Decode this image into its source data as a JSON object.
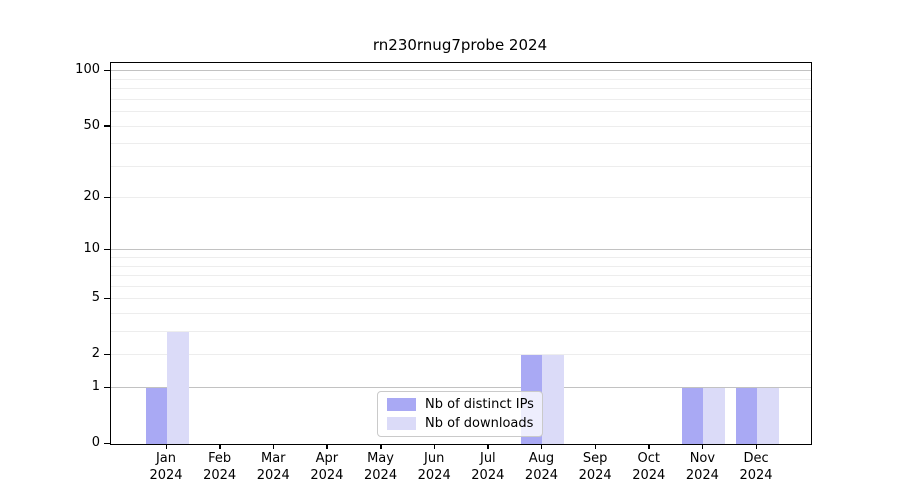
{
  "title": "rn230rnug7probe 2024",
  "chart_data": {
    "type": "bar",
    "title": "rn230rnug7probe 2024",
    "yscale": "log1p",
    "year": "2024",
    "months": [
      "Jan",
      "Feb",
      "Mar",
      "Apr",
      "May",
      "Jun",
      "Jul",
      "Aug",
      "Sep",
      "Oct",
      "Nov",
      "Dec"
    ],
    "series": [
      {
        "name": "Nb of distinct IPs",
        "color": "#a9a9f4",
        "values": [
          1,
          0,
          0,
          0,
          0,
          0,
          0,
          2,
          0,
          0,
          1,
          1
        ]
      },
      {
        "name": "Nb of downloads",
        "color": "#dbdbf8",
        "values": [
          3,
          0,
          0,
          0,
          0,
          0,
          0,
          2,
          0,
          0,
          1,
          1
        ]
      }
    ],
    "y_ticks": [
      0,
      1,
      2,
      5,
      10,
      20,
      50,
      100
    ],
    "y_major_grid": [
      1,
      10,
      100
    ],
    "y_minor_grid": [
      2,
      3,
      4,
      5,
      6,
      7,
      8,
      9,
      20,
      30,
      40,
      50,
      60,
      70,
      80,
      90
    ],
    "y_top": 111,
    "ylim": [
      0,
      111
    ],
    "xlabel": "",
    "ylabel": "",
    "legend_position": "lower center",
    "grid": "on"
  },
  "colors": {
    "bar_distinct_ips": "#a9a9f4",
    "bar_downloads": "#dbdbf8",
    "major_grid": "#c2c2c2",
    "minor_grid": "#ededed",
    "axis": "#000000",
    "legend_border": "#cacaca"
  }
}
